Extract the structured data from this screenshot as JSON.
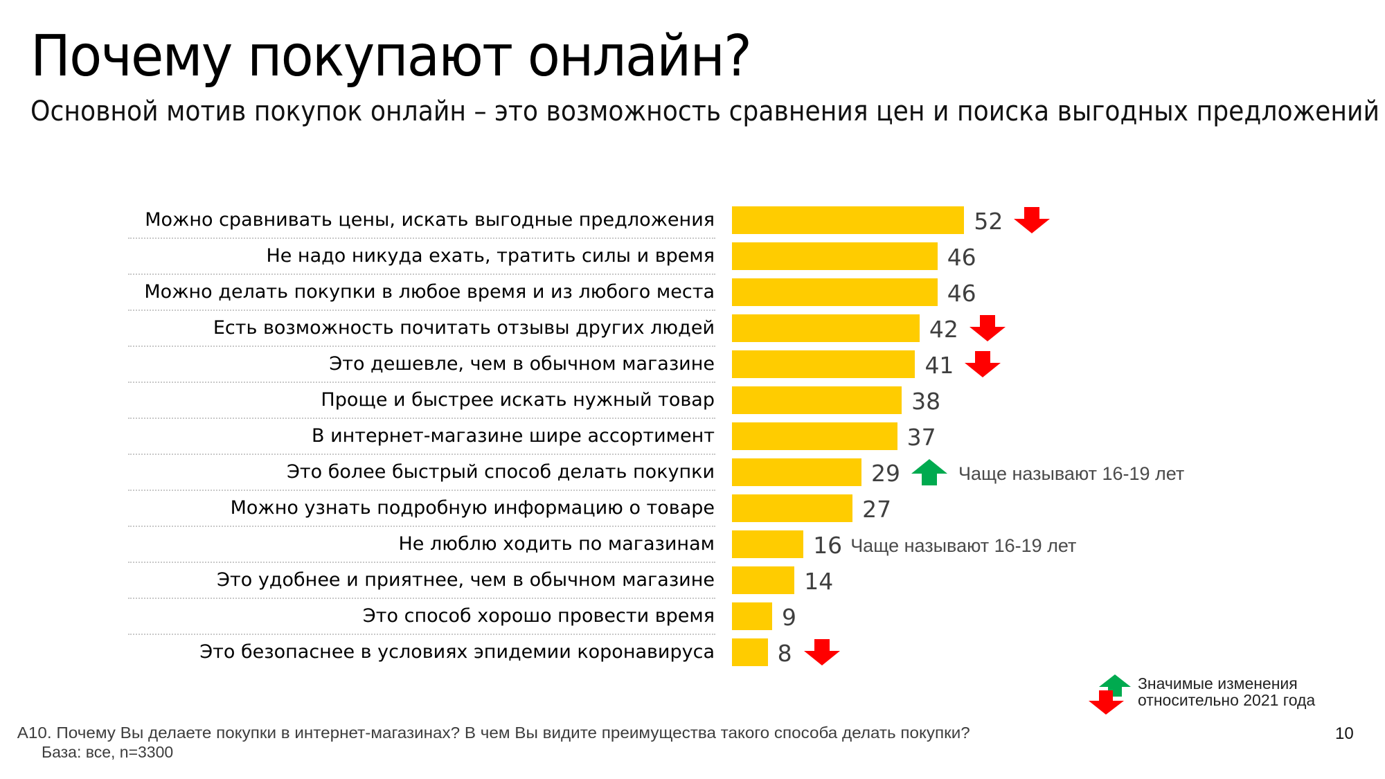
{
  "header": {
    "title": "Почему покупают онлайн?",
    "subtitle": "Основной мотив покупок онлайн – это возможность сравнения цен и поиска выгодных предложений"
  },
  "colors": {
    "bar": "#FFCC00",
    "decrease": "#FF0000",
    "increase": "#00AA4F"
  },
  "chart_data": {
    "type": "bar",
    "orientation": "horizontal",
    "unit": "%",
    "categories": [
      "Можно сравнивать цены, искать выгодные предложения",
      "Не надо никуда ехать, тратить силы и время",
      "Можно делать покупки в любое время и из любого места",
      "Есть возможность почитать отзывы других людей",
      "Это дешевле, чем в обычном магазине",
      "Проще и быстрее искать нужный товар",
      "В интернет-магазине шире ассортимент",
      "Это более быстрый способ делать покупки",
      "Можно узнать подробную информацию о товаре",
      "Не люблю ходить по магазинам",
      "Это удобнее и приятнее, чем в обычном магазине",
      "Это способ хорошо провести время",
      "Это безопаснее в условиях эпидемии коронавируса"
    ],
    "values": [
      52,
      46,
      46,
      42,
      41,
      38,
      37,
      29,
      27,
      16,
      14,
      9,
      8
    ],
    "changes": [
      "down",
      null,
      null,
      "down",
      "down",
      null,
      null,
      "up",
      null,
      null,
      null,
      null,
      "down"
    ],
    "notes": [
      null,
      null,
      null,
      null,
      null,
      null,
      null,
      "Чаще называют 16-19 лет",
      null,
      "Чаще называют 16-19 лет",
      null,
      null,
      null
    ],
    "title": "Почему покупают онлайн?",
    "xlabel": "",
    "ylabel": "",
    "xlim": [
      0,
      100
    ],
    "grid": false,
    "legend": {
      "position": "bottom-right",
      "entries": [
        "Значимые изменения относительно 2021 года"
      ]
    }
  },
  "legend": {
    "line1": "Значимые изменения",
    "line2": "относительно 2021 года"
  },
  "footer": {
    "question": "А10. Почему Вы делаете покупки в интернет-магазинах? В чем Вы видите преимущества такого способа делать покупки?",
    "base": "База: все, n=3300"
  },
  "page_number": "10"
}
